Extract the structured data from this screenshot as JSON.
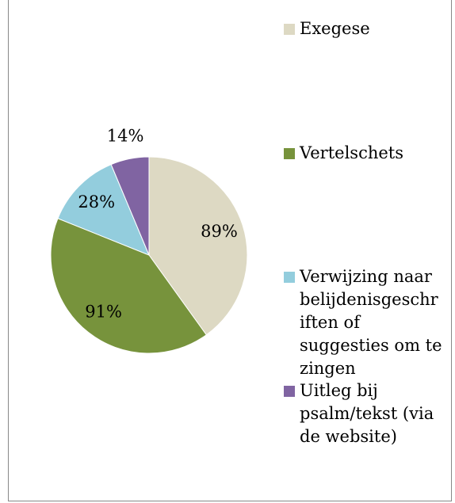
{
  "chart_data": {
    "type": "pie",
    "categories": [
      "Exegese",
      "Vertelschets",
      "Verwijzing naar belijdenisgeschriften of suggesties om te zingen",
      "Uitleg bij psalm/tekst (via de website)"
    ],
    "values": [
      89,
      91,
      28,
      14
    ],
    "value_labels": [
      "89%",
      "91%",
      "28%",
      "14%"
    ],
    "colors": [
      "#ddd9c3",
      "#77933c",
      "#93cddd",
      "#8064a2"
    ],
    "legend": "right"
  }
}
